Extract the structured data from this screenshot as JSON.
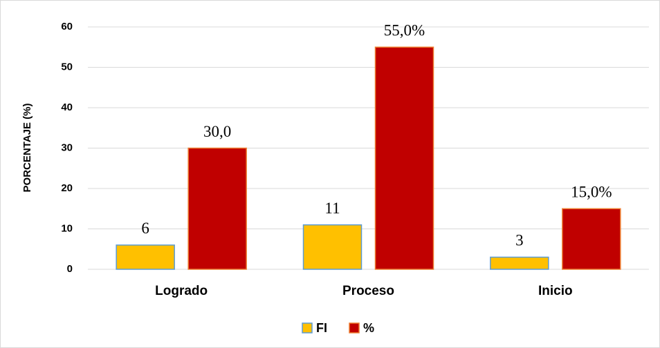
{
  "chart_data": {
    "type": "bar",
    "y_label": "PORCENTAJE (%)",
    "categories": [
      "Logrado",
      "Proceso",
      "Inicio"
    ],
    "series": [
      {
        "name": "FI",
        "color": "#ffc000",
        "values": [
          6,
          11,
          3
        ],
        "value_labels": [
          "6",
          "11",
          "3"
        ]
      },
      {
        "name": "%",
        "color": "#c00000",
        "values": [
          30,
          55,
          15
        ],
        "value_labels": [
          "30,0",
          "55,0%",
          "15,0%"
        ]
      }
    ],
    "ylim": [
      0,
      60
    ],
    "yticks": [
      0,
      10,
      20,
      30,
      40,
      50,
      60
    ],
    "grid": true,
    "legend": "bottom"
  }
}
